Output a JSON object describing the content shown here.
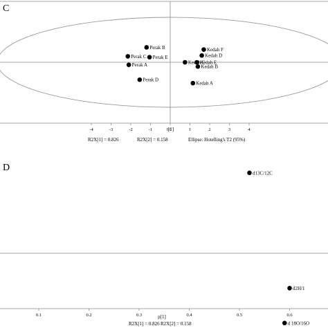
{
  "chart_data": [
    {
      "panel": "C",
      "type": "scatter",
      "xlabel": "t[1]",
      "xlim": [
        -4.5,
        4.5
      ],
      "ylim": [
        -4.5,
        4.5
      ],
      "xticks": [
        "-4",
        "-3",
        "-2",
        "-1",
        "0",
        "1",
        "2",
        "3",
        "4"
      ],
      "points": [
        {
          "label": "Perak B",
          "x": -1.2,
          "y": 1.75
        },
        {
          "label": "Perak E",
          "x": -1.05,
          "y": 0.6
        },
        {
          "label": "Perak C",
          "x": -2.15,
          "y": 0.7
        },
        {
          "label": "Perak A",
          "x": -2.1,
          "y": -0.3
        },
        {
          "label": "Perak D",
          "x": -1.55,
          "y": -2.05
        },
        {
          "label": "Kedah F",
          "x": 1.7,
          "y": 1.5
        },
        {
          "label": "Kedah D",
          "x": 1.6,
          "y": 0.8
        },
        {
          "label": "Kedah C",
          "x": 0.75,
          "y": 0.0
        },
        {
          "label": "Kedah E",
          "x": 1.35,
          "y": 0.0
        },
        {
          "label": "Kedah B",
          "x": 1.4,
          "y": -0.5
        },
        {
          "label": "Kedah A",
          "x": 1.15,
          "y": -2.45
        }
      ],
      "annotations": [
        "R2X[1] = 0.826",
        "R2X[2] = 0.158",
        "Ellipse: Hotelling's T2 (95%)"
      ]
    },
    {
      "panel": "D",
      "type": "scatter",
      "xlabel": "p[1]",
      "xlim": [
        0.0,
        0.63
      ],
      "xticks": [
        "0.1",
        "0.2",
        "0.3",
        "0.4",
        "0.5",
        "0.6"
      ],
      "points": [
        {
          "label": "d13C/12C",
          "x": 0.52,
          "y": 0.83
        },
        {
          "label": "d2H/1",
          "x": 0.6,
          "y": -0.36
        },
        {
          "label": "d 18O/16O",
          "x": 0.59,
          "y": -0.72
        }
      ],
      "annotations": [
        "R2X[1] = 0.826",
        "R2X[2] = 0.158"
      ]
    }
  ]
}
